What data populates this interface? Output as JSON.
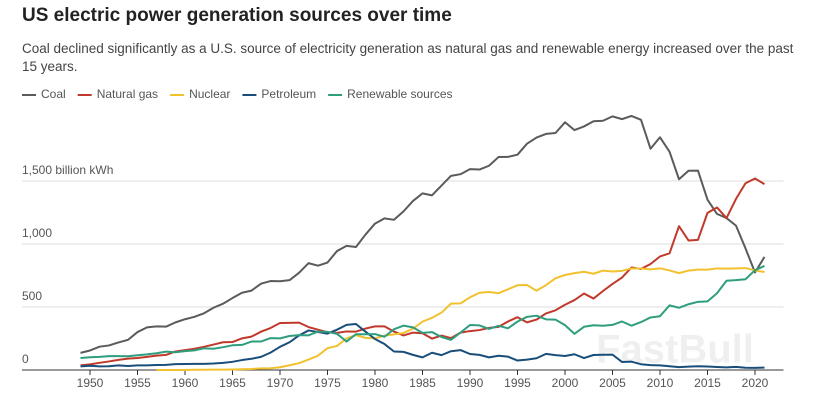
{
  "chart_data": {
    "type": "line",
    "title": "US electric power generation sources over time",
    "subtitle": "Coal declined significantly as a U.S. source of electricity generation as natural gas and renewable energy increased over the past 15 years.",
    "watermark": "FastBull",
    "x": [
      1949,
      1950,
      1951,
      1952,
      1953,
      1954,
      1955,
      1956,
      1957,
      1958,
      1959,
      1960,
      1961,
      1962,
      1963,
      1964,
      1965,
      1966,
      1967,
      1968,
      1969,
      1970,
      1971,
      1972,
      1973,
      1974,
      1975,
      1976,
      1977,
      1978,
      1979,
      1980,
      1981,
      1982,
      1983,
      1984,
      1985,
      1986,
      1987,
      1988,
      1989,
      1990,
      1991,
      1992,
      1993,
      1994,
      1995,
      1996,
      1997,
      1998,
      1999,
      2000,
      2001,
      2002,
      2003,
      2004,
      2005,
      2006,
      2007,
      2008,
      2009,
      2010,
      2011,
      2012,
      2013,
      2014,
      2015,
      2016,
      2017,
      2018,
      2019,
      2020,
      2021
    ],
    "xlim": [
      1948,
      2023
    ],
    "xticks": [
      1950,
      1955,
      1960,
      1965,
      1970,
      1975,
      1980,
      1985,
      1990,
      1995,
      2000,
      2005,
      2010,
      2015,
      2020
    ],
    "ylim": [
      0,
      2100
    ],
    "yticks": [
      0,
      500,
      {
        "value": 1000,
        "label": "1,000"
      },
      {
        "value": 1500,
        "label": "1,500 billion kWh"
      }
    ],
    "grid": true,
    "legend": "top-left",
    "series": [
      {
        "name": "Coal",
        "color": "#5b5b5b",
        "values": [
          136,
          155,
          185,
          195,
          219,
          239,
          301,
          338,
          346,
          344,
          378,
          403,
          422,
          450,
          494,
          526,
          571,
          613,
          630,
          685,
          706,
          704,
          713,
          771,
          848,
          828,
          853,
          944,
          985,
          976,
          1075,
          1162,
          1203,
          1192,
          1259,
          1342,
          1402,
          1386,
          1464,
          1541,
          1554,
          1594,
          1591,
          1621,
          1690,
          1691,
          1709,
          1796,
          1845,
          1874,
          1881,
          1966,
          1904,
          1933,
          1974,
          1978,
          2013,
          1991,
          2016,
          1986,
          1756,
          1847,
          1733,
          1514,
          1581,
          1582,
          1352,
          1239,
          1206,
          1146,
          965,
          774,
          898
        ]
      },
      {
        "name": "Natural gas",
        "color": "#c0392b",
        "values": [
          37,
          45,
          57,
          68,
          80,
          90,
          95,
          104,
          114,
          120,
          147,
          158,
          169,
          184,
          202,
          220,
          222,
          251,
          265,
          304,
          333,
          373,
          374,
          376,
          341,
          320,
          300,
          295,
          306,
          305,
          329,
          346,
          346,
          305,
          274,
          297,
          292,
          249,
          273,
          253,
          297,
          309,
          317,
          334,
          342,
          385,
          419,
          378,
          400,
          449,
          474,
          518,
          555,
          607,
          567,
          627,
          683,
          734,
          814,
          802,
          841,
          901,
          926,
          1141,
          1028,
          1033,
          1247,
          1290,
          1206,
          1358,
          1482,
          1520,
          1475
        ]
      },
      {
        "name": "Nuclear",
        "color": "#f2c12e",
        "values": [
          null,
          null,
          null,
          null,
          null,
          null,
          null,
          null,
          0,
          0.2,
          0.2,
          0.5,
          1.7,
          2.3,
          3.2,
          3.3,
          3.7,
          5.5,
          7.7,
          12.5,
          13.9,
          21.8,
          38,
          54,
          83,
          114,
          173,
          191,
          251,
          276,
          255,
          251,
          273,
          283,
          294,
          328,
          384,
          414,
          455,
          527,
          529,
          577,
          613,
          619,
          610,
          640,
          673,
          675,
          629,
          674,
          728,
          754,
          769,
          780,
          764,
          789,
          782,
          787,
          806,
          806,
          799,
          807,
          790,
          769,
          789,
          797,
          797,
          806,
          805,
          807,
          809,
          790,
          778
        ]
      },
      {
        "name": "Petroleum",
        "color": "#1a4e7a",
        "values": [
          29,
          34,
          29,
          30,
          37,
          32,
          37,
          37,
          40,
          41,
          47,
          48,
          49,
          49,
          52,
          57,
          65,
          79,
          89,
          104,
          138,
          184,
          220,
          274,
          314,
          301,
          289,
          320,
          358,
          365,
          304,
          246,
          206,
          147,
          144,
          120,
          100,
          137,
          118,
          149,
          158,
          127,
          120,
          100,
          113,
          106,
          75,
          82,
          93,
          128,
          118,
          111,
          125,
          95,
          119,
          121,
          122,
          64,
          66,
          46,
          39,
          37,
          30,
          23,
          27,
          30,
          28,
          24,
          21,
          25,
          18,
          17,
          19
        ]
      },
      {
        "name": "Renewable sources",
        "color": "#2e9e7e",
        "values": [
          95,
          101,
          104,
          110,
          110,
          109,
          117,
          124,
          133,
          146,
          141,
          150,
          156,
          172,
          169,
          181,
          196,
          199,
          226,
          226,
          253,
          251,
          270,
          277,
          275,
          305,
          303,
          287,
          226,
          284,
          284,
          285,
          264,
          324,
          352,
          338,
          295,
          301,
          262,
          239,
          297,
          357,
          354,
          326,
          351,
          331,
          384,
          422,
          431,
          402,
          400,
          356,
          287,
          343,
          355,
          351,
          358,
          385,
          352,
          380,
          417,
          427,
          513,
          494,
          522,
          541,
          545,
          609,
          708,
          713,
          720,
          792,
          826
        ]
      }
    ]
  }
}
